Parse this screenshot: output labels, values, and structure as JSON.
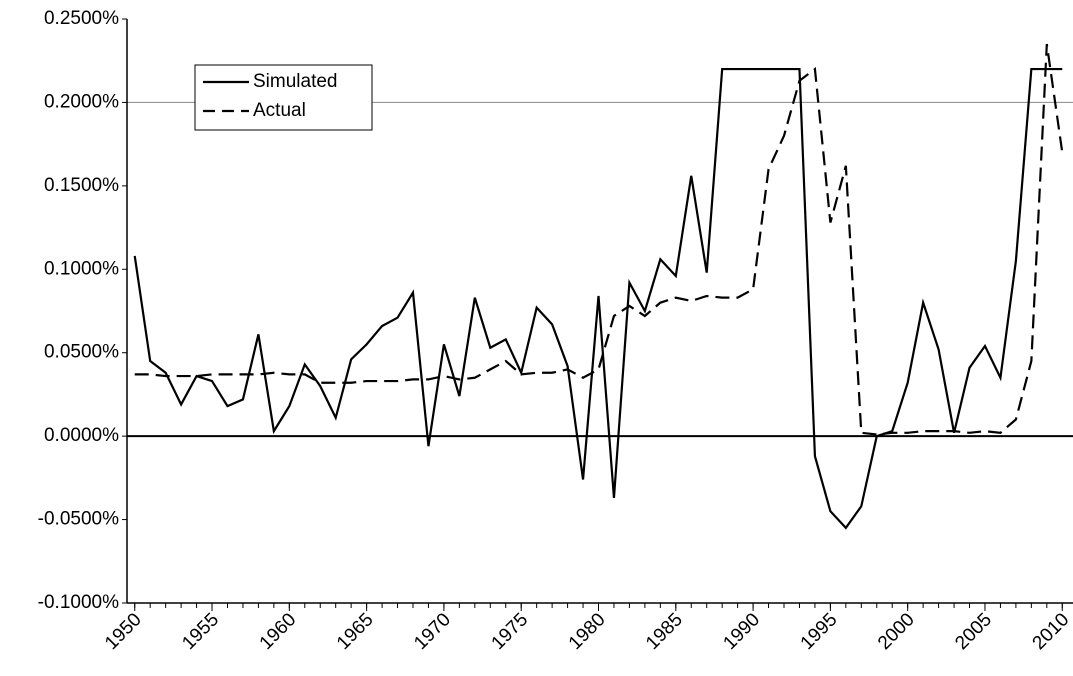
{
  "chart_data": {
    "type": "line",
    "x": [
      1950,
      1951,
      1952,
      1953,
      1954,
      1955,
      1956,
      1957,
      1958,
      1959,
      1960,
      1961,
      1962,
      1963,
      1964,
      1965,
      1966,
      1967,
      1968,
      1969,
      1970,
      1971,
      1972,
      1973,
      1974,
      1975,
      1976,
      1977,
      1978,
      1979,
      1980,
      1981,
      1982,
      1983,
      1984,
      1985,
      1986,
      1987,
      1988,
      1989,
      1990,
      1991,
      1992,
      1993,
      1994,
      1995,
      1996,
      1997,
      1998,
      1999,
      2000,
      2001,
      2002,
      2003,
      2004,
      2005,
      2006,
      2007,
      2008,
      2009,
      2010
    ],
    "series": [
      {
        "name": "Simulated",
        "color": "#000000",
        "dash": false,
        "values": [
          0.108,
          0.045,
          0.038,
          0.019,
          0.036,
          0.033,
          0.018,
          0.022,
          0.061,
          0.003,
          0.018,
          0.043,
          0.03,
          0.011,
          0.046,
          0.055,
          0.066,
          0.071,
          0.086,
          -0.006,
          0.055,
          0.024,
          0.083,
          0.053,
          0.058,
          0.038,
          0.077,
          0.067,
          0.042,
          -0.026,
          0.084,
          -0.037,
          0.092,
          0.075,
          0.106,
          0.096,
          0.156,
          0.098,
          0.22,
          0.22,
          0.22,
          0.22,
          0.22,
          0.22,
          -0.012,
          -0.045,
          -0.055,
          -0.042,
          0.0,
          0.003,
          0.032,
          0.08,
          0.052,
          0.002,
          0.041,
          0.054,
          0.035,
          0.105,
          0.22,
          0.22,
          0.22
        ]
      },
      {
        "name": "Actual",
        "color": "#000000",
        "dash": true,
        "values": [
          0.037,
          0.037,
          0.036,
          0.036,
          0.036,
          0.037,
          0.037,
          0.037,
          0.037,
          0.038,
          0.037,
          0.037,
          0.032,
          0.032,
          0.032,
          0.033,
          0.033,
          0.033,
          0.034,
          0.034,
          0.036,
          0.034,
          0.035,
          0.04,
          0.045,
          0.037,
          0.038,
          0.038,
          0.04,
          0.035,
          0.04,
          0.072,
          0.078,
          0.072,
          0.08,
          0.083,
          0.081,
          0.084,
          0.083,
          0.083,
          0.088,
          0.16,
          0.18,
          0.213,
          0.22,
          0.128,
          0.162,
          0.002,
          0.001,
          0.002,
          0.002,
          0.003,
          0.003,
          0.003,
          0.002,
          0.003,
          0.002,
          0.01,
          0.045,
          0.235,
          0.17
        ]
      }
    ],
    "xlim": [
      1949.5,
      2010.5
    ],
    "xticks": [
      1950,
      1955,
      1960,
      1965,
      1970,
      1975,
      1980,
      1985,
      1990,
      1995,
      2000,
      2005,
      2010
    ],
    "ylim": [
      -0.1,
      0.25
    ],
    "yticks": [
      {
        "value": -0.1,
        "label": "-0.1000%"
      },
      {
        "value": -0.05,
        "label": "-0.0500%"
      },
      {
        "value": 0,
        "label": "0.0000%"
      },
      {
        "value": 0.05,
        "label": "0.0500%"
      },
      {
        "value": 0.1,
        "label": "0.1000%"
      },
      {
        "value": 0.15,
        "label": "0.1500%"
      },
      {
        "value": 0.2,
        "label": "0.2000%"
      },
      {
        "value": 0.25,
        "label": "0.2500%"
      }
    ],
    "legend": "upper left"
  }
}
